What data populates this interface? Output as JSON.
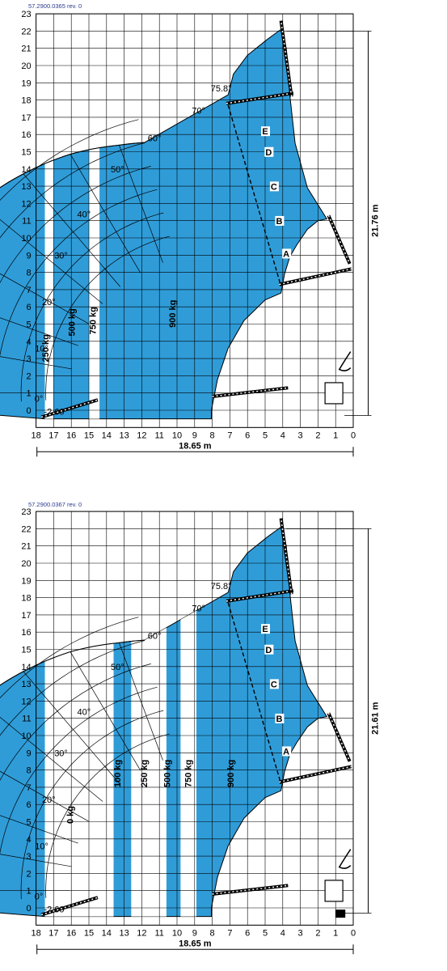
{
  "charts": [
    {
      "ref": "57.2900.0365   rev. 0",
      "height_label": "21.76 m",
      "reach_label": "18.65 m",
      "x_ticks": [
        "18",
        "17",
        "16",
        "15",
        "14",
        "13",
        "12",
        "11",
        "10",
        "9",
        "8",
        "7",
        "6",
        "5",
        "4",
        "3",
        "2",
        "1",
        "0"
      ],
      "y_ticks": [
        "0",
        "1",
        "2",
        "3",
        "4",
        "5",
        "6",
        "7",
        "8",
        "9",
        "10",
        "11",
        "12",
        "13",
        "14",
        "15",
        "16",
        "17",
        "18",
        "19",
        "20",
        "21",
        "22",
        "23"
      ],
      "angles": [
        "-2.60°",
        "0°",
        "10°",
        "20°",
        "30°",
        "40°",
        "50°",
        "60°",
        "70°",
        "75.8°"
      ],
      "points": [
        "A",
        "B",
        "C",
        "D",
        "E"
      ],
      "bands": [
        {
          "label": "250 kg",
          "color": "#ffffff"
        },
        {
          "label": "500 kg",
          "color": "#2f9cd8"
        },
        {
          "label": "750 kg",
          "color": "#ffffff"
        },
        {
          "label": "900 kg",
          "color": "#2f9cd8"
        }
      ]
    },
    {
      "ref": "57.2900.0367   rev. 0",
      "height_label": "21.61 m",
      "reach_label": "18.65 m",
      "x_ticks": [
        "18",
        "17",
        "16",
        "15",
        "14",
        "13",
        "12",
        "11",
        "10",
        "9",
        "8",
        "7",
        "6",
        "5",
        "4",
        "3",
        "2",
        "1",
        "0"
      ],
      "y_ticks": [
        "0",
        "1",
        "2",
        "3",
        "4",
        "5",
        "6",
        "7",
        "8",
        "9",
        "10",
        "11",
        "12",
        "13",
        "14",
        "15",
        "16",
        "17",
        "18",
        "19",
        "20",
        "21",
        "22",
        "23"
      ],
      "angles": [
        "-2.60°",
        "0°",
        "10°",
        "20°",
        "30°",
        "40°",
        "50°",
        "60°",
        "70°",
        "75.8°"
      ],
      "points": [
        "A",
        "B",
        "C",
        "D",
        "E"
      ],
      "bands": [
        {
          "label": "0 kg",
          "color": "#ffffff"
        },
        {
          "label": "100 kg",
          "color": "#2f9cd8"
        },
        {
          "label": "250 kg",
          "color": "#ffffff"
        },
        {
          "label": "500 kg",
          "color": "#2f9cd8"
        },
        {
          "label": "750 kg",
          "color": "#ffffff"
        },
        {
          "label": "900 kg",
          "color": "#2f9cd8"
        }
      ]
    }
  ],
  "colors": {
    "blue": "#2f9cd8",
    "grid": "#000000",
    "ref_text": "#2a3a8c"
  }
}
